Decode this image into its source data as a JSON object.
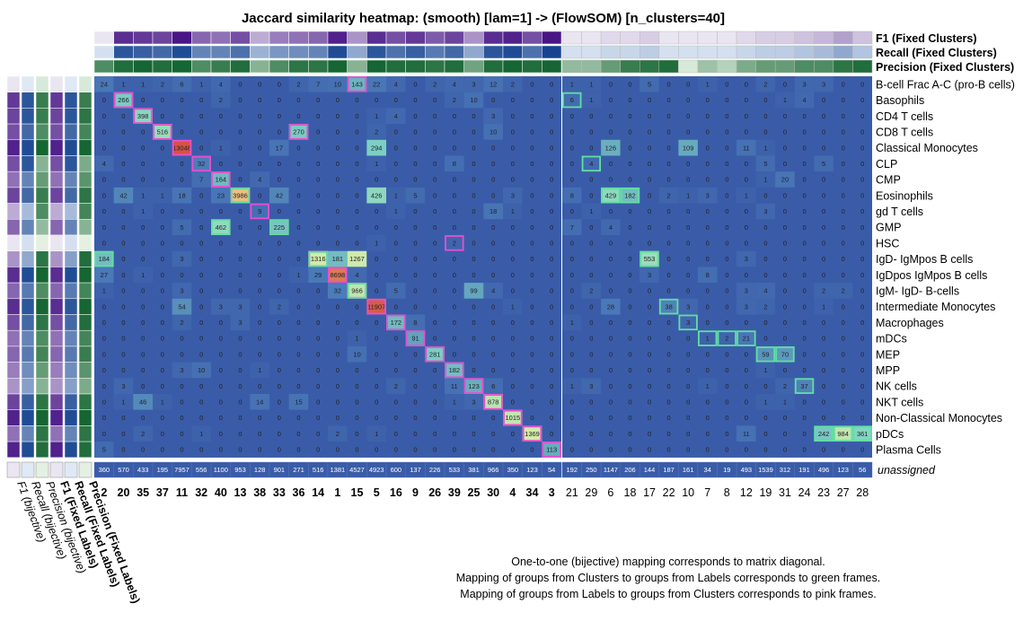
{
  "chart_data": {
    "type": "heatmap",
    "title": "Jaccard similarity heatmap: (smooth) [lam=1] -> (FlowSOM) [n_clusters=40]",
    "columns_left_block": [
      "2",
      "20",
      "35",
      "37",
      "11",
      "32",
      "40",
      "13",
      "38",
      "33",
      "36",
      "14",
      "1",
      "15",
      "5",
      "16",
      "9",
      "26",
      "39",
      "25",
      "30",
      "4",
      "34",
      "3"
    ],
    "columns_right_block": [
      "21",
      "29",
      "6",
      "18",
      "17",
      "22",
      "10",
      "7",
      "8",
      "12",
      "19",
      "31",
      "24",
      "23",
      "27",
      "28"
    ],
    "rows": [
      "B-cell Frac A-C (pro-B cells)",
      "Basophils",
      "CD4 T cells",
      "CD8 T cells",
      "Classical Monocytes",
      "CLP",
      "CMP",
      "Eosinophils",
      "gd T cells",
      "GMP",
      "HSC",
      "IgD- IgMpos B cells",
      "IgDpos IgMpos B cells",
      "IgM- IgD- B-cells",
      "Intermediate Monocytes",
      "Macrophages",
      "mDCs",
      "MEP",
      "MPP",
      "NK cells",
      "NKT cells",
      "Non-Classical Monocytes",
      "pDCs",
      "Plasma Cells"
    ],
    "values_left_block": [
      [
        24,
        1,
        1,
        2,
        6,
        1,
        4,
        0,
        0,
        0,
        2,
        7,
        10,
        143,
        22,
        4,
        0,
        2,
        4,
        3,
        12,
        2,
        0,
        0
      ],
      [
        0,
        266,
        0,
        0,
        0,
        0,
        2,
        0,
        0,
        0,
        0,
        0,
        0,
        0,
        0,
        0,
        0,
        0,
        2,
        10,
        0,
        0,
        0,
        0
      ],
      [
        0,
        0,
        398,
        0,
        0,
        0,
        0,
        0,
        0,
        0,
        0,
        0,
        0,
        0,
        1,
        4,
        0,
        0,
        0,
        0,
        3,
        0,
        0,
        0
      ],
      [
        0,
        0,
        0,
        516,
        0,
        0,
        0,
        0,
        0,
        0,
        270,
        0,
        0,
        0,
        2,
        0,
        0,
        0,
        0,
        0,
        10,
        0,
        0,
        0
      ],
      [
        0,
        0,
        0,
        0,
        13048,
        0,
        1,
        0,
        0,
        17,
        0,
        0,
        0,
        0,
        294,
        0,
        0,
        0,
        0,
        0,
        0,
        0,
        0,
        0
      ],
      [
        4,
        0,
        0,
        0,
        0,
        32,
        0,
        0,
        0,
        0,
        0,
        0,
        0,
        0,
        1,
        0,
        0,
        0,
        8,
        0,
        0,
        0,
        0,
        0
      ],
      [
        0,
        0,
        0,
        0,
        0,
        7,
        164,
        0,
        4,
        0,
        0,
        0,
        0,
        0,
        0,
        0,
        0,
        0,
        0,
        0,
        0,
        0,
        0,
        0
      ],
      [
        0,
        42,
        1,
        1,
        18,
        0,
        23,
        3986,
        0,
        42,
        0,
        0,
        0,
        0,
        426,
        1,
        5,
        0,
        0,
        0,
        0,
        3,
        0,
        0
      ],
      [
        0,
        0,
        1,
        0,
        0,
        0,
        0,
        0,
        9,
        0,
        0,
        0,
        0,
        0,
        0,
        1,
        0,
        0,
        0,
        0,
        18,
        1,
        0,
        0
      ],
      [
        0,
        0,
        0,
        0,
        5,
        0,
        462,
        0,
        0,
        225,
        0,
        0,
        0,
        0,
        0,
        0,
        0,
        0,
        0,
        0,
        0,
        0,
        0,
        0
      ],
      [
        0,
        0,
        0,
        0,
        0,
        0,
        0,
        0,
        0,
        0,
        0,
        0,
        0,
        0,
        1,
        0,
        0,
        0,
        2,
        0,
        0,
        0,
        0,
        0
      ],
      [
        184,
        0,
        0,
        0,
        3,
        0,
        0,
        0,
        0,
        0,
        0,
        1316,
        181,
        1267,
        0,
        0,
        0,
        0,
        0,
        0,
        0,
        0,
        0,
        0
      ],
      [
        27,
        0,
        1,
        0,
        0,
        0,
        0,
        0,
        0,
        0,
        1,
        29,
        8698,
        4,
        0,
        0,
        0,
        0,
        0,
        0,
        0,
        0,
        0,
        0
      ],
      [
        1,
        0,
        0,
        0,
        3,
        0,
        0,
        0,
        0,
        0,
        0,
        0,
        32,
        966,
        0,
        5,
        0,
        0,
        0,
        99,
        4,
        0,
        0,
        0
      ],
      [
        0,
        0,
        0,
        0,
        54,
        0,
        3,
        3,
        0,
        2,
        0,
        0,
        0,
        0,
        11907,
        0,
        0,
        0,
        0,
        0,
        0,
        1,
        0,
        0
      ],
      [
        0,
        0,
        0,
        0,
        2,
        0,
        0,
        3,
        0,
        0,
        0,
        0,
        0,
        0,
        0,
        172,
        8,
        0,
        0,
        0,
        0,
        0,
        0,
        0
      ],
      [
        0,
        0,
        0,
        0,
        0,
        0,
        0,
        0,
        0,
        0,
        0,
        0,
        0,
        1,
        0,
        0,
        91,
        0,
        0,
        0,
        0,
        0,
        0,
        0
      ],
      [
        0,
        0,
        0,
        0,
        0,
        0,
        0,
        0,
        0,
        0,
        0,
        0,
        0,
        10,
        0,
        0,
        0,
        281,
        0,
        0,
        0,
        0,
        0,
        0
      ],
      [
        0,
        0,
        0,
        0,
        3,
        10,
        0,
        0,
        1,
        0,
        0,
        0,
        0,
        0,
        0,
        0,
        0,
        0,
        182,
        0,
        0,
        0,
        0,
        0
      ],
      [
        0,
        3,
        0,
        0,
        0,
        0,
        0,
        0,
        0,
        0,
        0,
        0,
        0,
        0,
        0,
        2,
        0,
        0,
        11,
        123,
        6,
        0,
        0,
        0
      ],
      [
        0,
        1,
        46,
        1,
        0,
        0,
        0,
        0,
        14,
        0,
        15,
        0,
        0,
        0,
        0,
        0,
        0,
        0,
        1,
        3,
        878,
        0,
        0,
        0
      ],
      [
        0,
        0,
        0,
        0,
        0,
        0,
        0,
        0,
        0,
        0,
        0,
        0,
        0,
        0,
        0,
        0,
        0,
        0,
        0,
        0,
        0,
        1015,
        0,
        0
      ],
      [
        0,
        0,
        2,
        0,
        0,
        1,
        0,
        0,
        0,
        0,
        0,
        0,
        2,
        0,
        1,
        0,
        0,
        0,
        0,
        0,
        0,
        0,
        1369,
        0
      ],
      [
        5,
        0,
        0,
        0,
        0,
        0,
        0,
        0,
        0,
        0,
        0,
        0,
        0,
        0,
        0,
        0,
        0,
        0,
        0,
        0,
        0,
        0,
        0,
        113
      ]
    ],
    "values_right_block": [
      [
        1,
        1,
        0,
        0,
        5,
        0,
        0,
        1,
        0,
        0,
        2,
        0,
        3,
        3,
        0,
        0
      ],
      [
        6,
        1,
        0,
        0,
        0,
        0,
        0,
        0,
        0,
        0,
        0,
        1,
        4,
        0,
        0,
        0
      ],
      [
        0,
        0,
        0,
        0,
        0,
        0,
        0,
        0,
        0,
        0,
        0,
        0,
        0,
        0,
        0,
        0
      ],
      [
        0,
        0,
        0,
        0,
        0,
        0,
        0,
        0,
        0,
        0,
        0,
        0,
        0,
        0,
        0,
        0
      ],
      [
        0,
        0,
        126,
        0,
        0,
        0,
        109,
        0,
        0,
        11,
        1,
        0,
        0,
        0,
        0,
        0
      ],
      [
        0,
        4,
        0,
        0,
        0,
        0,
        0,
        0,
        0,
        0,
        5,
        0,
        0,
        5,
        0,
        0
      ],
      [
        0,
        0,
        0,
        0,
        0,
        0,
        0,
        0,
        0,
        0,
        1,
        20,
        0,
        0,
        0,
        0
      ],
      [
        8,
        0,
        429,
        182,
        0,
        2,
        1,
        3,
        0,
        1,
        0,
        0,
        0,
        0,
        0,
        0
      ],
      [
        0,
        1,
        0,
        0,
        0,
        0,
        0,
        0,
        0,
        0,
        3,
        0,
        0,
        0,
        0,
        0
      ],
      [
        7,
        0,
        4,
        0,
        0,
        0,
        0,
        0,
        0,
        0,
        0,
        0,
        0,
        0,
        0,
        0
      ],
      [
        0,
        0,
        0,
        0,
        0,
        0,
        0,
        0,
        0,
        0,
        0,
        0,
        0,
        0,
        0,
        0
      ],
      [
        0,
        0,
        0,
        0,
        553,
        0,
        0,
        0,
        0,
        3,
        0,
        0,
        0,
        0,
        0,
        0
      ],
      [
        0,
        0,
        0,
        0,
        3,
        0,
        0,
        8,
        0,
        0,
        0,
        0,
        0,
        0,
        0,
        0
      ],
      [
        0,
        2,
        0,
        0,
        0,
        0,
        0,
        0,
        0,
        3,
        4,
        0,
        0,
        2,
        2,
        0
      ],
      [
        0,
        0,
        28,
        0,
        0,
        38,
        3,
        0,
        0,
        3,
        2,
        0,
        0,
        1,
        0,
        0
      ],
      [
        1,
        0,
        0,
        0,
        0,
        0,
        3,
        0,
        0,
        0,
        0,
        0,
        0,
        0,
        0,
        0
      ],
      [
        0,
        0,
        0,
        0,
        0,
        0,
        0,
        1,
        2,
        21,
        0,
        0,
        0,
        0,
        0,
        0
      ],
      [
        0,
        0,
        0,
        0,
        0,
        0,
        0,
        0,
        0,
        0,
        59,
        70,
        0,
        0,
        0,
        0
      ],
      [
        0,
        0,
        0,
        0,
        0,
        0,
        0,
        0,
        0,
        0,
        1,
        0,
        0,
        0,
        0,
        0
      ],
      [
        1,
        3,
        0,
        0,
        0,
        0,
        0,
        1,
        0,
        0,
        0,
        2,
        37,
        0,
        0,
        0
      ],
      [
        0,
        0,
        0,
        0,
        0,
        0,
        0,
        0,
        0,
        0,
        1,
        1,
        0,
        0,
        0,
        0
      ],
      [
        0,
        0,
        0,
        0,
        0,
        0,
        0,
        0,
        0,
        0,
        0,
        0,
        0,
        0,
        0,
        0
      ],
      [
        0,
        0,
        0,
        0,
        0,
        0,
        0,
        0,
        0,
        11,
        0,
        0,
        0,
        242,
        984,
        361
      ],
      [
        0,
        0,
        0,
        0,
        0,
        0,
        0,
        0,
        0,
        0,
        0,
        0,
        0,
        0,
        0,
        0
      ]
    ],
    "unassigned_label": "unassigned",
    "unassigned_left_block": [
      360,
      570,
      433,
      195,
      7957,
      556,
      1100,
      953,
      128,
      901,
      271,
      516,
      1381,
      4527,
      4923,
      600,
      137,
      226,
      533,
      381,
      966,
      350,
      123,
      54
    ],
    "unassigned_right_block": [
      192,
      250,
      1147,
      206,
      144,
      187,
      161,
      34,
      19,
      493,
      1539,
      312,
      191,
      496,
      123,
      56
    ],
    "pink_frames": [
      [
        0,
        13
      ],
      [
        1,
        1
      ],
      [
        2,
        2
      ],
      [
        3,
        3
      ],
      [
        4,
        4
      ],
      [
        5,
        5
      ],
      [
        6,
        6
      ],
      [
        7,
        7
      ],
      [
        8,
        8
      ],
      [
        9,
        9
      ],
      [
        10,
        18
      ],
      [
        3,
        10
      ],
      [
        11,
        11
      ],
      [
        12,
        12
      ],
      [
        13,
        13
      ],
      [
        14,
        14
      ],
      [
        15,
        15
      ],
      [
        16,
        16
      ],
      [
        17,
        17
      ],
      [
        18,
        18
      ],
      [
        19,
        19
      ],
      [
        20,
        20
      ],
      [
        21,
        21
      ],
      [
        22,
        22
      ],
      [
        23,
        23
      ]
    ],
    "green_frames_left": [
      [
        11,
        0
      ],
      [
        13,
        13
      ],
      [
        7,
        7
      ],
      [
        9,
        6
      ],
      [
        9,
        9
      ],
      [
        11,
        11
      ]
    ],
    "green_frames_right": [
      [
        1,
        0
      ],
      [
        5,
        1
      ],
      [
        7,
        2
      ],
      [
        7,
        3
      ],
      [
        11,
        4
      ],
      [
        14,
        5
      ],
      [
        15,
        6
      ],
      [
        16,
        7
      ],
      [
        16,
        8
      ],
      [
        16,
        9
      ],
      [
        17,
        10
      ],
      [
        17,
        11
      ],
      [
        19,
        12
      ],
      [
        22,
        13
      ],
      [
        22,
        14
      ],
      [
        22,
        15
      ]
    ],
    "top_annotation_labels": [
      "F1 (Fixed Clusters)",
      "Recall (Fixed Clusters)",
      "Precision (Fixed Clusters)"
    ],
    "top_f1_left": [
      0.05,
      0.85,
      0.8,
      0.75,
      0.95,
      0.6,
      0.55,
      0.7,
      0.3,
      0.5,
      0.55,
      0.6,
      0.9,
      0.4,
      0.85,
      0.7,
      0.8,
      0.65,
      0.75,
      0.4,
      0.85,
      0.9,
      0.7,
      0.95
    ],
    "top_recall_left": [
      0.1,
      0.85,
      0.8,
      0.75,
      0.9,
      0.6,
      0.6,
      0.7,
      0.35,
      0.5,
      0.55,
      0.6,
      0.9,
      0.4,
      0.85,
      0.7,
      0.8,
      0.65,
      0.75,
      0.4,
      0.85,
      0.9,
      0.7,
      0.95
    ],
    "top_precision_left": [
      0.7,
      0.9,
      0.95,
      0.9,
      0.95,
      0.7,
      0.8,
      0.9,
      0.45,
      0.7,
      0.85,
      0.85,
      0.95,
      0.45,
      0.95,
      0.9,
      0.9,
      0.85,
      0.9,
      0.55,
      0.9,
      0.95,
      0.9,
      0.95
    ],
    "top_f1_right": [
      0.05,
      0.05,
      0.1,
      0.1,
      0.15,
      0.05,
      0.05,
      0.05,
      0.05,
      0.1,
      0.15,
      0.15,
      0.2,
      0.25,
      0.35,
      0.2
    ],
    "top_recall_right": [
      0.1,
      0.1,
      0.15,
      0.15,
      0.2,
      0.1,
      0.1,
      0.1,
      0.1,
      0.15,
      0.2,
      0.2,
      0.25,
      0.3,
      0.4,
      0.25
    ],
    "top_precision_right": [
      0.4,
      0.4,
      0.6,
      0.8,
      0.85,
      0.9,
      0.1,
      0.35,
      0.25,
      0.5,
      0.6,
      0.6,
      0.7,
      0.7,
      0.85,
      0.9
    ],
    "left_annotation_labels": [
      "F1 (bijective)",
      "Recall (bijective)",
      "Precision (bijective)",
      "F1 (Fixed Labels)",
      "Recall (Fixed Labels)",
      "Precision (Fixed Labels)"
    ],
    "left_f1_bij": [
      0.05,
      0.8,
      0.75,
      0.7,
      0.9,
      0.7,
      0.55,
      0.75,
      0.3,
      0.6,
      0.05,
      0.4,
      0.85,
      0.6,
      0.85,
      0.7,
      0.55,
      0.6,
      0.5,
      0.4,
      0.75,
      0.9,
      0.55,
      0.9
    ],
    "left_recall_bij": [
      0.05,
      0.85,
      0.85,
      0.75,
      0.9,
      0.85,
      0.6,
      0.75,
      0.3,
      0.6,
      0.1,
      0.4,
      0.9,
      0.65,
      0.85,
      0.75,
      0.6,
      0.65,
      0.55,
      0.45,
      0.8,
      0.9,
      0.6,
      0.9
    ],
    "left_precision_bij": [
      0.1,
      0.8,
      0.8,
      0.7,
      0.95,
      0.45,
      0.6,
      0.8,
      0.7,
      0.4,
      0.05,
      0.85,
      0.95,
      0.7,
      0.95,
      0.85,
      0.7,
      0.75,
      0.6,
      0.45,
      0.85,
      0.95,
      0.85,
      0.9
    ],
    "left_f1_fixed": [
      0.05,
      0.8,
      0.75,
      0.7,
      0.9,
      0.7,
      0.55,
      0.75,
      0.3,
      0.6,
      0.05,
      0.4,
      0.85,
      0.6,
      0.85,
      0.7,
      0.55,
      0.6,
      0.5,
      0.4,
      0.75,
      0.9,
      0.55,
      0.9
    ],
    "left_recall_fixed": [
      0.05,
      0.85,
      0.85,
      0.75,
      0.9,
      0.85,
      0.6,
      0.75,
      0.3,
      0.6,
      0.1,
      0.45,
      0.9,
      0.65,
      0.85,
      0.75,
      0.6,
      0.65,
      0.55,
      0.45,
      0.8,
      0.9,
      0.6,
      0.9
    ],
    "left_precision_fixed": [
      0.1,
      0.8,
      0.85,
      0.75,
      0.95,
      0.5,
      0.65,
      0.85,
      0.75,
      0.45,
      0.05,
      0.9,
      0.95,
      0.75,
      0.95,
      0.9,
      0.75,
      0.8,
      0.65,
      0.5,
      0.85,
      0.95,
      0.85,
      0.9
    ],
    "notes": [
      "One-to-one (bijective) mapping corresponds to matrix diagonal.",
      "Mapping of groups from Clusters to groups from Labels corresponds to green frames.",
      "Mapping of groups from Labels to groups from Clusters corresponds to pink frames."
    ],
    "colors": {
      "cell_low": "#3a5ca8",
      "cell_mid": "#7fd3c5",
      "cell_high_yellow": "#f2f4a0",
      "cell_high_red": "#d4403a",
      "pink_frame": "#e94ed0",
      "green_frame": "#5fe0a0",
      "purple_high": "#3f0a80",
      "purple_low": "#f2f0f7",
      "blue_high": "#0a3a8a",
      "blue_low": "#eaf2fb",
      "green_high": "#0a5e28",
      "green_low": "#eef8ec"
    }
  }
}
